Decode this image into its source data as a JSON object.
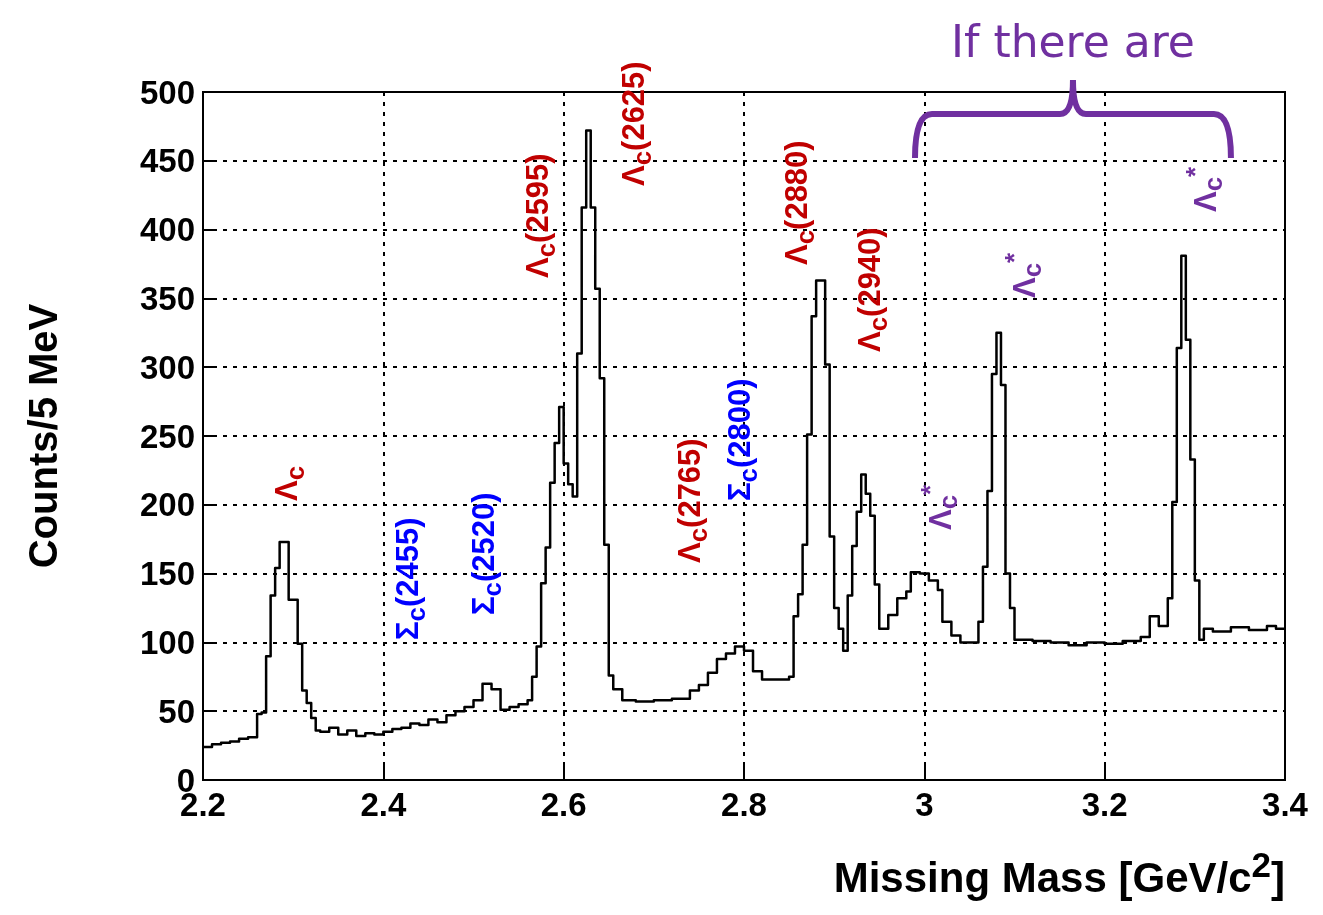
{
  "chart_data": {
    "type": "step",
    "xlabel": "Missing Mass [GeV/c$^{2}$]",
    "ylabel": "Counts/5 MeV",
    "x": [
      2.2,
      2.21,
      2.22,
      2.23,
      2.24,
      2.25,
      2.26,
      2.265,
      2.27,
      2.275,
      2.28,
      2.285,
      2.295,
      2.305,
      2.31,
      2.315,
      2.32,
      2.325,
      2.33,
      2.34,
      2.35,
      2.36,
      2.37,
      2.38,
      2.39,
      2.4,
      2.41,
      2.42,
      2.43,
      2.44,
      2.45,
      2.46,
      2.47,
      2.48,
      2.49,
      2.5,
      2.51,
      2.52,
      2.53,
      2.54,
      2.55,
      2.56,
      2.565,
      2.57,
      2.575,
      2.58,
      2.585,
      2.59,
      2.595,
      2.6,
      2.605,
      2.61,
      2.615,
      2.62,
      2.625,
      2.63,
      2.635,
      2.64,
      2.645,
      2.65,
      2.655,
      2.665,
      2.68,
      2.7,
      2.72,
      2.74,
      2.75,
      2.76,
      2.77,
      2.78,
      2.79,
      2.8,
      2.81,
      2.82,
      2.85,
      2.855,
      2.86,
      2.865,
      2.87,
      2.875,
      2.88,
      2.89,
      2.895,
      2.9,
      2.905,
      2.91,
      2.915,
      2.92,
      2.925,
      2.93,
      2.935,
      2.94,
      2.945,
      2.95,
      2.96,
      2.97,
      2.98,
      2.985,
      2.995,
      3.005,
      3.015,
      3.02,
      3.03,
      3.04,
      3.05,
      3.06,
      3.065,
      3.07,
      3.075,
      3.08,
      3.085,
      3.09,
      3.095,
      3.1,
      3.12,
      3.14,
      3.16,
      3.18,
      3.2,
      3.22,
      3.24,
      3.25,
      3.26,
      3.27,
      3.275,
      3.28,
      3.285,
      3.29,
      3.295,
      3.3,
      3.305,
      3.31,
      3.32,
      3.34,
      3.36,
      3.38,
      3.39,
      3.4
    ],
    "series": [
      {
        "color": "#000000",
        "values": [
          24,
          26,
          27,
          28,
          30,
          31,
          48,
          49,
          90,
          134,
          154,
          173,
          131,
          99,
          65,
          56,
          45,
          36,
          35,
          38,
          33,
          36,
          32,
          34,
          33,
          35,
          37,
          38,
          41,
          40,
          44,
          42,
          47,
          50,
          53,
          58,
          70,
          66,
          51,
          53,
          55,
          58,
          75,
          97,
          143,
          169,
          216,
          245,
          271,
          230,
          215,
          206,
          310,
          416,
          472,
          416,
          357,
          292,
          171,
          76,
          66,
          58,
          57,
          58,
          59,
          65,
          69,
          78,
          88,
          92,
          97,
          94,
          79,
          73,
          75,
          119,
          135,
          171,
          251,
          337,
          363,
          302,
          177,
          125,
          110,
          94,
          134,
          170,
          195,
          222,
          208,
          192,
          142,
          110,
          120,
          132,
          137,
          151,
          150,
          145,
          138,
          115,
          105,
          100,
          100,
          115,
          155,
          210,
          295,
          325,
          287,
          150,
          125,
          102,
          101,
          100,
          98,
          100,
          99,
          101,
          104,
          119,
          112,
          132,
          202,
          314,
          381,
          320,
          233,
          145,
          102,
          110,
          108,
          111,
          109,
          112,
          110,
          110
        ]
      }
    ],
    "xlim": [
      2.2,
      3.4
    ],
    "xticks": [
      2.2,
      2.4,
      2.6,
      2.8,
      3,
      3.2,
      3.4
    ],
    "ylim": [
      0,
      500
    ],
    "yticks": [
      0,
      50,
      100,
      150,
      200,
      250,
      300,
      350,
      400,
      450,
      500
    ],
    "grid": true,
    "line_style": "solid",
    "marker": "none",
    "annotations": [
      "Λ$_{c}$",
      "Σ$_{c}$(2455)",
      "Σ$_{c}$(2520)",
      "Λ$_{c}$(2595)",
      "Λ$_{c}$(2625)",
      "Λ$_{c}$(2765)",
      "Σ$_{c}$(2800)",
      "Λ$_{c}$(2880)",
      "Λ$_{c}$(2940)",
      "Λ$_{c}$$^{*}$",
      "Λ$_{c}$$^{*}$",
      "Λ$_{c}$$^{*}$",
      "If there are"
    ]
  }
}
